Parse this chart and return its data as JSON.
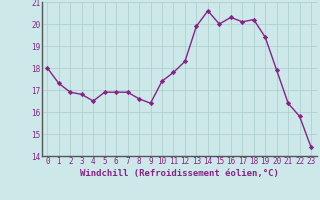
{
  "x": [
    0,
    1,
    2,
    3,
    4,
    5,
    6,
    7,
    8,
    9,
    10,
    11,
    12,
    13,
    14,
    15,
    16,
    17,
    18,
    19,
    20,
    21,
    22,
    23
  ],
  "y": [
    18.0,
    17.3,
    16.9,
    16.8,
    16.5,
    16.9,
    16.9,
    16.9,
    16.6,
    16.4,
    17.4,
    17.8,
    18.3,
    19.9,
    20.6,
    20.0,
    20.3,
    20.1,
    20.2,
    19.4,
    17.9,
    16.4,
    15.8,
    14.4
  ],
  "line_color": "#882288",
  "marker": "D",
  "marker_size": 2.2,
  "bg_color": "#cce8e8",
  "grid_color": "#aacccc",
  "xlabel": "Windchill (Refroidissement éolien,°C)",
  "ylim": [
    14,
    21
  ],
  "xlim": [
    -0.5,
    23.5
  ],
  "yticks": [
    14,
    15,
    16,
    17,
    18,
    19,
    20,
    21
  ],
  "xticks": [
    0,
    1,
    2,
    3,
    4,
    5,
    6,
    7,
    8,
    9,
    10,
    11,
    12,
    13,
    14,
    15,
    16,
    17,
    18,
    19,
    20,
    21,
    22,
    23
  ],
  "tick_label_color": "#882288",
  "tick_fontsize": 5.5,
  "xlabel_fontsize": 6.5,
  "linewidth": 1.0
}
